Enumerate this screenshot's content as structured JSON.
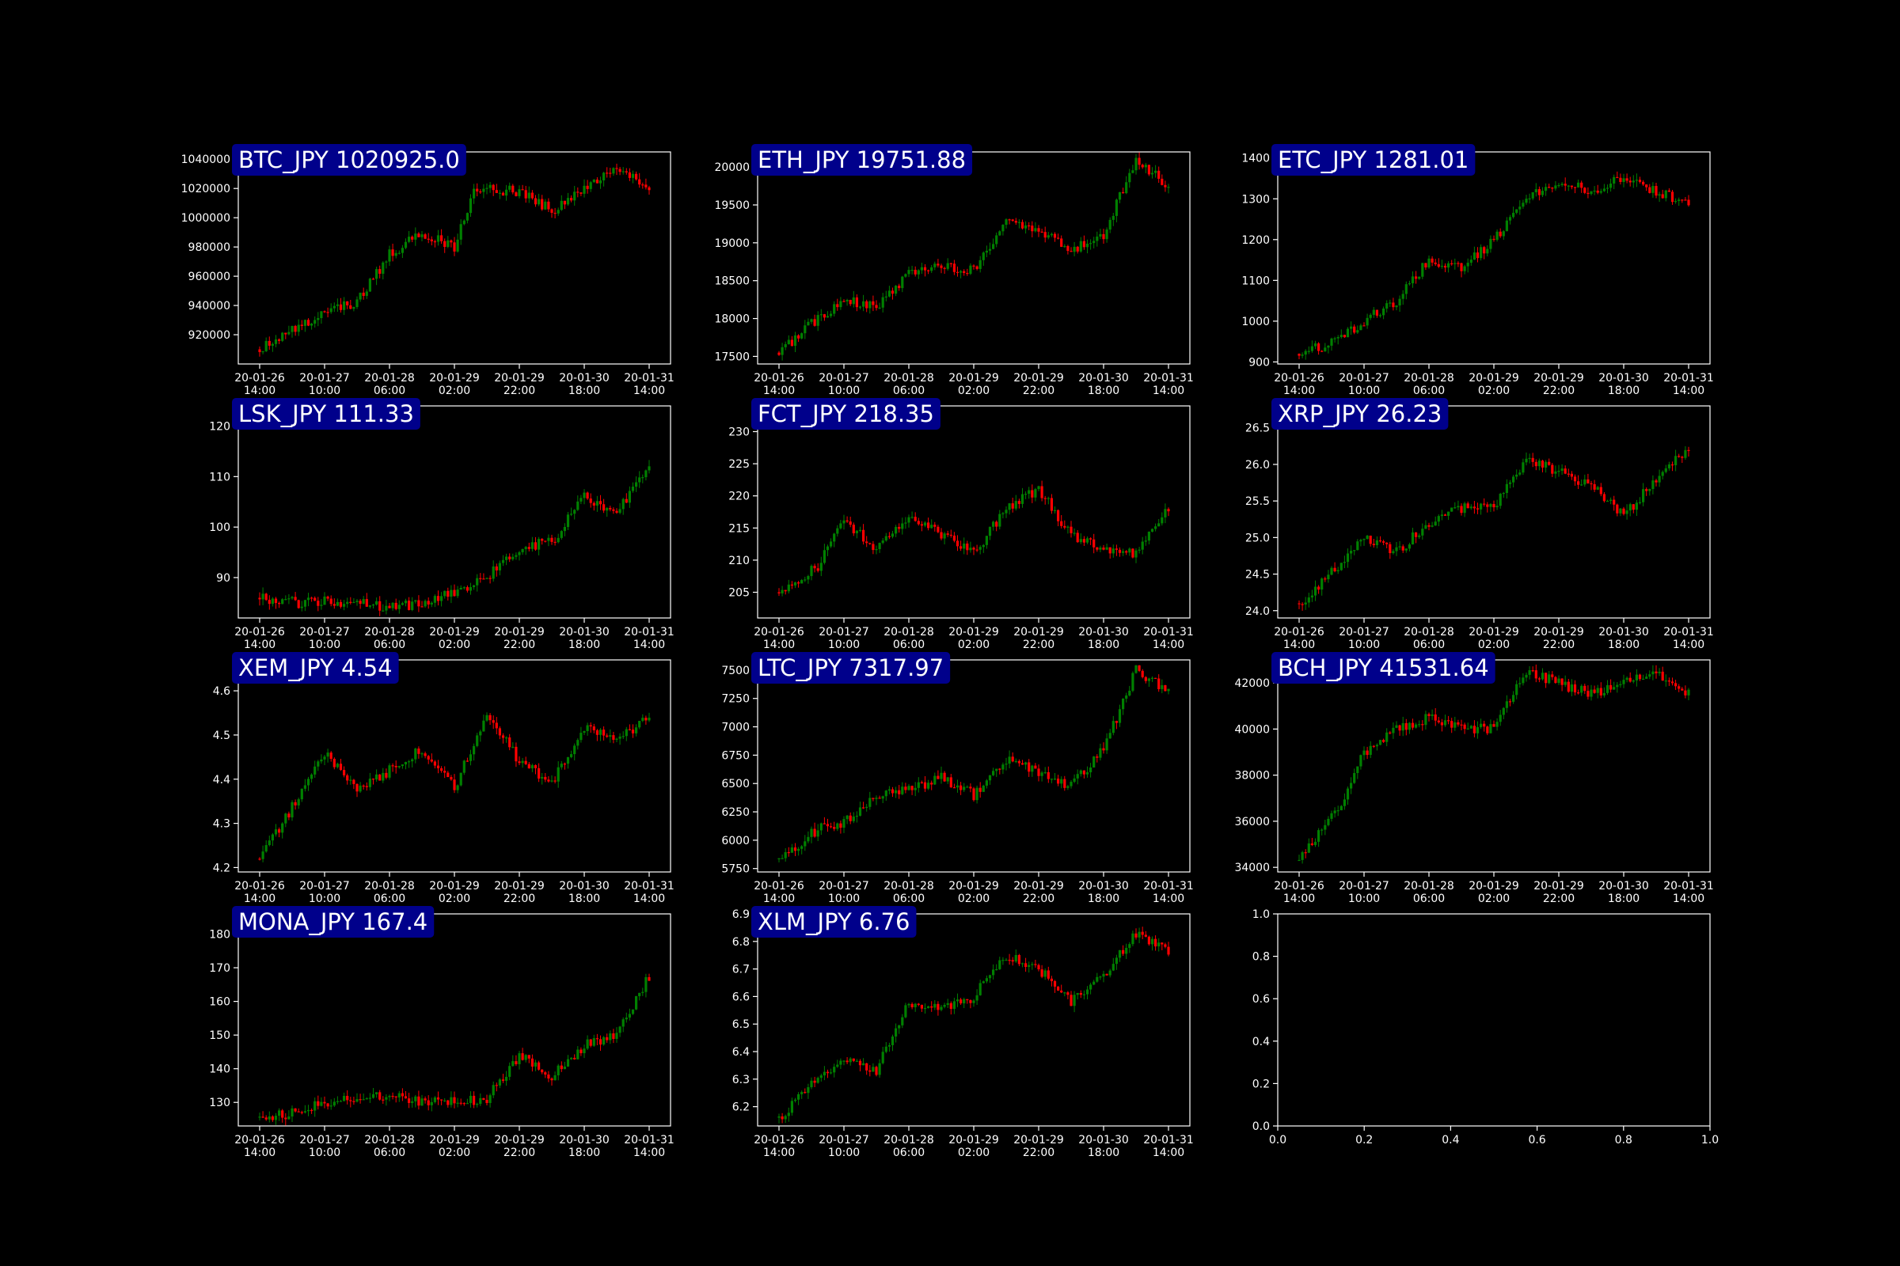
{
  "figure": {
    "background": "#000000",
    "axes_color": "#ffffff",
    "up_color": "#008000",
    "down_color": "#ff0000",
    "label_box_color": "#00008b",
    "label_text_color": "#ffffff"
  },
  "time_ticks": [
    "20-01-26\n14:00",
    "20-01-27\n10:00",
    "20-01-28\n06:00",
    "20-01-29\n02:00",
    "20-01-29\n22:00",
    "20-01-30\n18:00",
    "20-01-31\n14:00"
  ],
  "chart_data": [
    {
      "type": "line",
      "title": "BTC_JPY 1020925.0",
      "ytick_labels": [
        "920000",
        "940000",
        "960000",
        "980000",
        "1000000",
        "1020000",
        "1040000"
      ],
      "ylim": [
        900000,
        1045000
      ],
      "x": [
        "20-01-26 14:00",
        "20-01-27 02:00",
        "20-01-27 10:00",
        "20-01-27 20:00",
        "20-01-28 06:00",
        "20-01-28 16:00",
        "20-01-29 02:00",
        "20-01-29 08:00",
        "20-01-29 22:00",
        "20-01-30 08:00",
        "20-01-30 18:00",
        "20-01-31 04:00",
        "20-01-31 14:00"
      ],
      "values": [
        910000,
        925000,
        935000,
        942000,
        975000,
        990000,
        980000,
        1020000,
        1018000,
        1005000,
        1020000,
        1035000,
        1021000
      ]
    },
    {
      "type": "line",
      "title": "ETH_JPY 19751.88",
      "ytick_labels": [
        "17500",
        "18000",
        "18500",
        "19000",
        "19500",
        "20000"
      ],
      "ylim": [
        17400,
        20200
      ],
      "x": [
        "20-01-26 14:00",
        "20-01-27 02:00",
        "20-01-27 10:00",
        "20-01-27 20:00",
        "20-01-28 06:00",
        "20-01-28 16:00",
        "20-01-29 02:00",
        "20-01-29 12:00",
        "20-01-29 22:00",
        "20-01-30 08:00",
        "20-01-30 18:00",
        "20-01-31 04:00",
        "20-01-31 14:00"
      ],
      "values": [
        17550,
        18000,
        18250,
        18150,
        18600,
        18700,
        18650,
        19300,
        19150,
        18900,
        19100,
        20100,
        19750
      ]
    },
    {
      "type": "line",
      "title": "ETC_JPY 1281.01",
      "ytick_labels": [
        "900",
        "1000",
        "1100",
        "1200",
        "1300",
        "1400"
      ],
      "ylim": [
        895,
        1415
      ],
      "x": [
        "20-01-26 14:00",
        "20-01-27 02:00",
        "20-01-27 10:00",
        "20-01-27 20:00",
        "20-01-28 06:00",
        "20-01-28 16:00",
        "20-01-29 02:00",
        "20-01-29 12:00",
        "20-01-29 22:00",
        "20-01-30 08:00",
        "20-01-30 18:00",
        "20-01-31 04:00",
        "20-01-31 14:00"
      ],
      "values": [
        920,
        950,
        1000,
        1050,
        1150,
        1130,
        1200,
        1300,
        1340,
        1320,
        1350,
        1320,
        1281
      ]
    },
    {
      "type": "line",
      "title": "LSK_JPY 111.33",
      "ytick_labels": [
        "90",
        "100",
        "110",
        "120"
      ],
      "ylim": [
        82,
        124
      ],
      "x": [
        "20-01-26 14:00",
        "20-01-27 02:00",
        "20-01-27 10:00",
        "20-01-27 20:00",
        "20-01-28 06:00",
        "20-01-28 16:00",
        "20-01-29 02:00",
        "20-01-29 12:00",
        "20-01-29 22:00",
        "20-01-30 08:00",
        "20-01-30 18:00",
        "20-01-31 04:00",
        "20-01-31 14:00"
      ],
      "values": [
        86,
        85,
        85.5,
        85,
        84,
        85,
        87,
        90,
        96,
        97,
        106,
        103,
        111.33
      ]
    },
    {
      "type": "line",
      "title": "FCT_JPY 218.35",
      "ytick_labels": [
        "205",
        "210",
        "215",
        "220",
        "225",
        "230"
      ],
      "ylim": [
        201,
        234
      ],
      "x": [
        "20-01-26 14:00",
        "20-01-27 02:00",
        "20-01-27 10:00",
        "20-01-27 20:00",
        "20-01-28 06:00",
        "20-01-28 16:00",
        "20-01-29 02:00",
        "20-01-29 12:00",
        "20-01-29 22:00",
        "20-01-30 08:00",
        "20-01-30 18:00",
        "20-01-31 04:00",
        "20-01-31 14:00"
      ],
      "values": [
        205,
        209,
        216,
        212,
        217,
        214,
        211,
        218,
        221,
        214,
        212,
        211,
        218.35
      ]
    },
    {
      "type": "line",
      "title": "XRP_JPY 26.23",
      "ytick_labels": [
        "24.0",
        "24.5",
        "25.0",
        "25.5",
        "26.0",
        "26.5"
      ],
      "ylim": [
        23.9,
        26.8
      ],
      "x": [
        "20-01-26 14:00",
        "20-01-27 02:00",
        "20-01-27 10:00",
        "20-01-27 20:00",
        "20-01-28 06:00",
        "20-01-28 16:00",
        "20-01-29 02:00",
        "20-01-29 12:00",
        "20-01-29 22:00",
        "20-01-30 08:00",
        "20-01-30 18:00",
        "20-01-31 04:00",
        "20-01-31 14:00"
      ],
      "values": [
        24.1,
        24.6,
        25.0,
        24.8,
        25.2,
        25.4,
        25.4,
        26.1,
        25.9,
        25.7,
        25.3,
        25.8,
        26.23
      ]
    },
    {
      "type": "line",
      "title": "XEM_JPY 4.54",
      "ytick_labels": [
        "4.2",
        "4.3",
        "4.4",
        "4.5",
        "4.6"
      ],
      "ylim": [
        4.19,
        4.67
      ],
      "x": [
        "20-01-26 14:00",
        "20-01-27 02:00",
        "20-01-27 10:00",
        "20-01-27 20:00",
        "20-01-28 06:00",
        "20-01-28 16:00",
        "20-01-29 02:00",
        "20-01-29 12:00",
        "20-01-29 22:00",
        "20-01-30 08:00",
        "20-01-30 18:00",
        "20-01-31 04:00",
        "20-01-31 14:00"
      ],
      "values": [
        4.22,
        4.36,
        4.46,
        4.37,
        4.42,
        4.47,
        4.38,
        4.55,
        4.44,
        4.39,
        4.52,
        4.49,
        4.54
      ]
    },
    {
      "type": "line",
      "title": "LTC_JPY 7317.97",
      "ytick_labels": [
        "5750",
        "6000",
        "6250",
        "6500",
        "6750",
        "7000",
        "7250",
        "7500"
      ],
      "ylim": [
        5720,
        7590
      ],
      "x": [
        "20-01-26 14:00",
        "20-01-27 02:00",
        "20-01-27 10:00",
        "20-01-27 20:00",
        "20-01-28 06:00",
        "20-01-28 16:00",
        "20-01-29 02:00",
        "20-01-29 12:00",
        "20-01-29 22:00",
        "20-01-30 08:00",
        "20-01-30 18:00",
        "20-01-31 04:00",
        "20-01-31 14:00"
      ],
      "values": [
        5840,
        6100,
        6150,
        6400,
        6450,
        6550,
        6400,
        6700,
        6600,
        6480,
        6800,
        7500,
        7318
      ]
    },
    {
      "type": "line",
      "title": "BCH_JPY 41531.64",
      "ytick_labels": [
        "34000",
        "36000",
        "38000",
        "40000",
        "42000"
      ],
      "ylim": [
        33800,
        43000
      ],
      "x": [
        "20-01-26 14:00",
        "20-01-27 02:00",
        "20-01-27 10:00",
        "20-01-27 20:00",
        "20-01-28 06:00",
        "20-01-28 16:00",
        "20-01-29 02:00",
        "20-01-29 12:00",
        "20-01-29 22:00",
        "20-01-30 08:00",
        "20-01-30 18:00",
        "20-01-31 04:00",
        "20-01-31 14:00"
      ],
      "values": [
        34300,
        36500,
        39000,
        40000,
        40500,
        40000,
        40000,
        42500,
        42000,
        41500,
        42000,
        42500,
        41532
      ]
    },
    {
      "type": "line",
      "title": "MONA_JPY 167.4",
      "ytick_labels": [
        "130",
        "140",
        "150",
        "160",
        "170",
        "180"
      ],
      "ylim": [
        123,
        186
      ],
      "x": [
        "20-01-26 14:00",
        "20-01-27 02:00",
        "20-01-27 10:00",
        "20-01-27 20:00",
        "20-01-28 06:00",
        "20-01-28 16:00",
        "20-01-29 02:00",
        "20-01-29 12:00",
        "20-01-29 22:00",
        "20-01-30 08:00",
        "20-01-30 18:00",
        "20-01-31 04:00",
        "20-01-31 14:00"
      ],
      "values": [
        125.5,
        127,
        130,
        131,
        132,
        130,
        130,
        131,
        144,
        138,
        147,
        150,
        167.4
      ]
    },
    {
      "type": "line",
      "title": "XLM_JPY 6.76",
      "ytick_labels": [
        "6.2",
        "6.3",
        "6.4",
        "6.5",
        "6.6",
        "6.7",
        "6.8",
        "6.9"
      ],
      "ylim": [
        6.13,
        6.9
      ],
      "x": [
        "20-01-26 14:00",
        "20-01-27 02:00",
        "20-01-27 10:00",
        "20-01-27 20:00",
        "20-01-28 06:00",
        "20-01-28 16:00",
        "20-01-29 02:00",
        "20-01-29 12:00",
        "20-01-29 22:00",
        "20-01-30 08:00",
        "20-01-30 18:00",
        "20-01-31 04:00",
        "20-01-31 14:00"
      ],
      "values": [
        6.16,
        6.3,
        6.38,
        6.33,
        6.58,
        6.55,
        6.6,
        6.75,
        6.7,
        6.58,
        6.68,
        6.83,
        6.76
      ]
    },
    {
      "type": "line",
      "title": "",
      "ytick_labels": [
        "0.0",
        "0.2",
        "0.4",
        "0.6",
        "0.8",
        "1.0"
      ],
      "xtick_labels": [
        "0.0",
        "0.2",
        "0.4",
        "0.6",
        "0.8",
        "1.0"
      ],
      "xlim": [
        0,
        1
      ],
      "ylim": [
        0,
        1
      ],
      "values": []
    }
  ]
}
